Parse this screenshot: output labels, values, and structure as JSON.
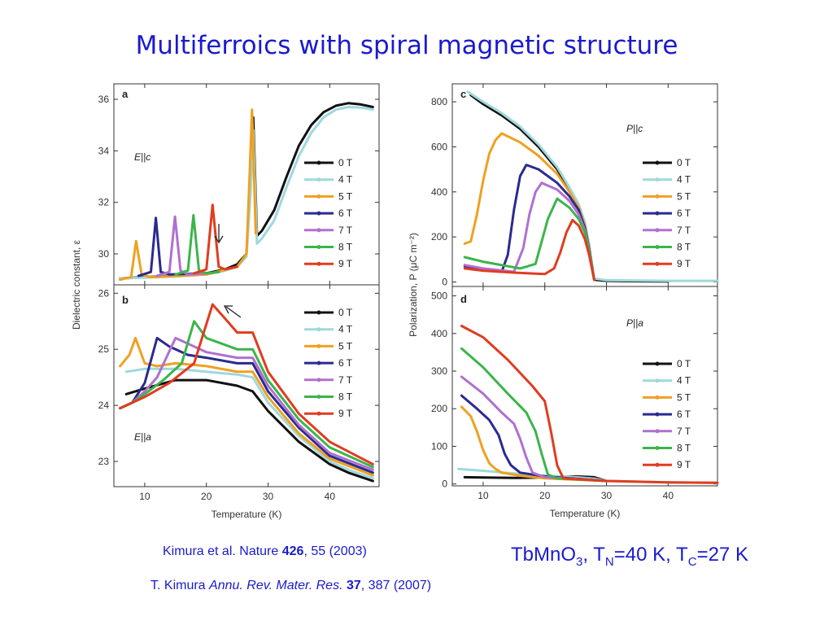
{
  "slide_title": "Multiferroics with spiral magnetic structure",
  "references": {
    "ref1_pre": "Kimura et al. Nature ",
    "ref1_vol": "426",
    "ref1_post": ", 55 (2003)",
    "ref2_pre": "T. Kimura ",
    "ref2_journal": "Annu. Rev. Mater. Res.",
    "ref2_vol": "37",
    "ref2_post": ", 387 (2007)"
  },
  "material": {
    "formula_main": "TbMnO",
    "formula_sub": "3",
    "tn_pre": ", T",
    "tn_sub": "N",
    "tn_val": "=40 K, T",
    "tc_sub": "C",
    "tc_val": "=27 K"
  },
  "colors": {
    "0 T": "#111111",
    "4 T": "#9fd8dc",
    "5 T": "#f0a020",
    "6 T": "#2a2a90",
    "7 T": "#b070d0",
    "8 T": "#3cb44b",
    "9 T": "#e03c20"
  },
  "chart_data": [
    {
      "type": "line",
      "panel_label": "a",
      "annotation": "E||c",
      "xlabel": "",
      "ylabel": "Dielectric constant, ε",
      "xlim": [
        5,
        48
      ],
      "ylim": [
        28.8,
        36.6
      ],
      "yticks": [
        "36",
        "34",
        "32",
        "30"
      ],
      "yticks_values": [
        36,
        34,
        32,
        30
      ],
      "xticks": [],
      "legend": "right",
      "series": [
        {
          "name": "0 T",
          "x": [
            6,
            10,
            15,
            20,
            23,
            25,
            26.5,
            27.2,
            27.6,
            28.2,
            29,
            31,
            33,
            35,
            37,
            39,
            41,
            43,
            45,
            47
          ],
          "y": [
            29.05,
            29.1,
            29.15,
            29.25,
            29.4,
            29.6,
            30.0,
            33.0,
            35.3,
            30.7,
            30.9,
            31.7,
            33.0,
            34.2,
            35.0,
            35.5,
            35.75,
            35.85,
            35.8,
            35.7
          ]
        },
        {
          "name": "4 T",
          "x": [
            6,
            10,
            15,
            20,
            23,
            25,
            26.5,
            27.2,
            27.6,
            28.2,
            29,
            31,
            33,
            35,
            37,
            39,
            41,
            43,
            45,
            47
          ],
          "y": [
            29.05,
            29.08,
            29.12,
            29.2,
            29.35,
            29.5,
            29.9,
            32.5,
            34.8,
            30.4,
            30.6,
            31.3,
            32.6,
            33.8,
            34.7,
            35.3,
            35.6,
            35.7,
            35.68,
            35.6
          ]
        },
        {
          "name": "5 T",
          "x": [
            6,
            7.8,
            8.6,
            9.5,
            11,
            20,
            25,
            26.5,
            27.0,
            27.4,
            28
          ],
          "y": [
            29.0,
            29.1,
            30.5,
            29.2,
            29.1,
            29.2,
            29.5,
            30.0,
            33.0,
            35.6,
            30.8
          ]
        },
        {
          "name": "6 T",
          "x": [
            9,
            11,
            11.8,
            12.6,
            14,
            20
          ],
          "y": [
            29.15,
            29.3,
            31.4,
            29.3,
            29.2,
            29.25
          ]
        },
        {
          "name": "7 T",
          "x": [
            12,
            14,
            14.9,
            15.8,
            17,
            20
          ],
          "y": [
            29.15,
            29.3,
            31.45,
            29.35,
            29.2,
            29.25
          ]
        },
        {
          "name": "8 T",
          "x": [
            15,
            17,
            17.9,
            18.8,
            20,
            22
          ],
          "y": [
            29.2,
            29.35,
            31.5,
            29.35,
            29.25,
            29.3
          ]
        },
        {
          "name": "9 T",
          "x": [
            18,
            20,
            21.0,
            22.0,
            23,
            25
          ],
          "y": [
            29.25,
            29.4,
            31.9,
            29.5,
            29.4,
            29.5
          ]
        }
      ]
    },
    {
      "type": "line",
      "panel_label": "b",
      "annotation": "E||a",
      "xlabel": "Temperature (K)",
      "ylabel": "",
      "xlim": [
        5,
        48
      ],
      "ylim": [
        22.55,
        26.15
      ],
      "yticks": [
        "26",
        "25",
        "24",
        "23"
      ],
      "yticks_values": [
        26,
        25,
        24,
        23
      ],
      "xticks": [
        "10",
        "20",
        "30",
        "40"
      ],
      "xticks_values": [
        10,
        20,
        30,
        40
      ],
      "legend": "right",
      "series": [
        {
          "name": "0 T",
          "x": [
            7,
            10,
            15,
            20,
            25,
            27.5,
            30,
            35,
            40,
            43,
            47
          ],
          "y": [
            24.2,
            24.3,
            24.45,
            24.45,
            24.35,
            24.25,
            23.9,
            23.35,
            22.95,
            22.8,
            22.65
          ]
        },
        {
          "name": "4 T",
          "x": [
            7,
            10,
            15,
            20,
            25,
            27.5,
            30,
            35,
            40,
            43,
            47
          ],
          "y": [
            24.6,
            24.65,
            24.65,
            24.6,
            24.55,
            24.5,
            24.05,
            23.45,
            23.0,
            22.85,
            22.7
          ]
        },
        {
          "name": "5 T",
          "x": [
            6,
            7.5,
            8.5,
            10,
            12,
            15,
            20,
            25,
            27.5,
            30,
            35,
            40,
            47
          ],
          "y": [
            24.7,
            24.9,
            25.2,
            24.75,
            24.7,
            24.75,
            24.7,
            24.6,
            24.6,
            24.15,
            23.5,
            23.05,
            22.75
          ]
        },
        {
          "name": "6 T",
          "x": [
            6,
            8,
            10,
            12,
            14,
            17,
            20,
            25,
            27.5,
            30,
            35,
            40,
            47
          ],
          "y": [
            23.95,
            24.05,
            24.4,
            25.2,
            25.05,
            24.9,
            24.85,
            24.75,
            24.75,
            24.25,
            23.6,
            23.1,
            22.8
          ]
        },
        {
          "name": "7 T",
          "x": [
            6,
            8,
            10,
            12,
            15,
            17,
            20,
            25,
            27.5,
            30,
            35,
            40,
            47
          ],
          "y": [
            23.95,
            24.05,
            24.25,
            24.5,
            25.2,
            25.1,
            24.95,
            24.85,
            24.85,
            24.35,
            23.65,
            23.15,
            22.85
          ]
        },
        {
          "name": "8 T",
          "x": [
            6,
            8,
            10,
            13,
            16,
            18,
            20,
            25,
            27.5,
            30,
            35,
            40,
            47
          ],
          "y": [
            23.95,
            24.05,
            24.2,
            24.45,
            24.75,
            25.5,
            25.2,
            25.0,
            25.0,
            24.45,
            23.75,
            23.25,
            22.9
          ]
        },
        {
          "name": "9 T",
          "x": [
            6,
            8,
            10,
            14,
            18,
            21,
            23,
            25,
            27.5,
            30,
            35,
            40,
            47
          ],
          "y": [
            23.95,
            24.05,
            24.15,
            24.4,
            24.75,
            25.8,
            25.55,
            25.3,
            25.3,
            24.6,
            23.85,
            23.35,
            22.95
          ]
        }
      ]
    },
    {
      "type": "line",
      "panel_label": "c",
      "annotation": "P||c",
      "xlabel": "",
      "ylabel": "Polarization, P (μC m⁻²)",
      "xlim": [
        5,
        48
      ],
      "ylim": [
        -20,
        880
      ],
      "yticks": [
        "800",
        "600",
        "400",
        "200",
        "0"
      ],
      "yticks_values": [
        800,
        600,
        400,
        200,
        0
      ],
      "xticks": [],
      "legend": "right",
      "series": [
        {
          "name": "0 T",
          "x": [
            8,
            10,
            13,
            16,
            19,
            22,
            24,
            25.5,
            26.5,
            27.2,
            28,
            30,
            35,
            40
          ],
          "y": [
            830,
            790,
            740,
            680,
            600,
            500,
            410,
            340,
            260,
            160,
            10,
            5,
            3,
            2
          ]
        },
        {
          "name": "4 T",
          "x": [
            7.5,
            10,
            13,
            16,
            19,
            22,
            24,
            25.5,
            26.5,
            27.2,
            28,
            30,
            40,
            48
          ],
          "y": [
            845,
            800,
            750,
            690,
            610,
            510,
            420,
            345,
            265,
            160,
            15,
            8,
            5,
            5
          ]
        },
        {
          "name": "5 T",
          "x": [
            7,
            8,
            9,
            10,
            11,
            12,
            13,
            16,
            19,
            22,
            24,
            25.5,
            26.5,
            27.2,
            28
          ],
          "y": [
            170,
            180,
            300,
            450,
            570,
            630,
            660,
            620,
            560,
            480,
            400,
            330,
            250,
            150,
            10
          ]
        },
        {
          "name": "6 T",
          "x": [
            7,
            10,
            13,
            14,
            15,
            16,
            17,
            19,
            22,
            24,
            25.5,
            26.5,
            27.2,
            28
          ],
          "y": [
            70,
            55,
            45,
            120,
            320,
            470,
            520,
            500,
            440,
            380,
            320,
            240,
            145,
            10
          ]
        },
        {
          "name": "7 T",
          "x": [
            7,
            10,
            15,
            16.5,
            17.5,
            18.5,
            19.5,
            22,
            24,
            25.5,
            26.5,
            27.2,
            28
          ],
          "y": [
            75,
            60,
            45,
            150,
            300,
            400,
            440,
            410,
            360,
            300,
            230,
            140,
            10
          ]
        },
        {
          "name": "8 T",
          "x": [
            7,
            10,
            16,
            18.5,
            19.5,
            20.5,
            21.5,
            22,
            24,
            25.5,
            26.5,
            27.2,
            28
          ],
          "y": [
            110,
            90,
            60,
            80,
            180,
            280,
            340,
            370,
            330,
            280,
            220,
            135,
            10
          ]
        },
        {
          "name": "9 T",
          "x": [
            7,
            10,
            16,
            20,
            21.5,
            22.5,
            23.5,
            24.5,
            25.5,
            26.5,
            27.2,
            28
          ],
          "y": [
            60,
            50,
            40,
            35,
            60,
            130,
            220,
            275,
            250,
            190,
            120,
            10
          ]
        }
      ]
    },
    {
      "type": "line",
      "panel_label": "d",
      "annotation": "P||a",
      "xlabel": "Temperature (K)",
      "ylabel": "",
      "xlim": [
        5,
        48
      ],
      "ylim": [
        -5,
        525
      ],
      "yticks": [
        "500",
        "400",
        "300",
        "200",
        "100",
        "0"
      ],
      "yticks_values": [
        500,
        400,
        300,
        200,
        100,
        0
      ],
      "xticks": [
        "10",
        "20",
        "30",
        "40"
      ],
      "xticks_values": [
        10,
        20,
        30,
        40
      ],
      "legend": "right",
      "series": [
        {
          "name": "0 T",
          "x": [
            7,
            10,
            15,
            20,
            25,
            28,
            30
          ],
          "y": [
            18,
            17,
            16,
            17,
            20,
            18,
            8
          ]
        },
        {
          "name": "4 T",
          "x": [
            6,
            10,
            15,
            20,
            25,
            28,
            30,
            40,
            48
          ],
          "y": [
            40,
            35,
            28,
            22,
            18,
            14,
            8,
            4,
            3
          ]
        },
        {
          "name": "5 T",
          "x": [
            6.5,
            8,
            9,
            10,
            11,
            12,
            13,
            16,
            20,
            30
          ],
          "y": [
            205,
            180,
            140,
            90,
            55,
            40,
            30,
            22,
            15,
            8
          ]
        },
        {
          "name": "6 T",
          "x": [
            6.5,
            9,
            11,
            12.5,
            13.5,
            14.5,
            16,
            20,
            30
          ],
          "y": [
            235,
            200,
            170,
            130,
            80,
            50,
            30,
            20,
            8
          ]
        },
        {
          "name": "7 T",
          "x": [
            6.5,
            10,
            13,
            15,
            16,
            17,
            18,
            20,
            30
          ],
          "y": [
            285,
            240,
            190,
            160,
            120,
            70,
            30,
            18,
            8
          ]
        },
        {
          "name": "8 T",
          "x": [
            6.5,
            10,
            14,
            17,
            18.5,
            19.5,
            20.5,
            22,
            30
          ],
          "y": [
            360,
            310,
            240,
            190,
            140,
            80,
            25,
            15,
            8
          ]
        },
        {
          "name": "9 T",
          "x": [
            6.5,
            10,
            14,
            18,
            20,
            21,
            22,
            23,
            30,
            40,
            48
          ],
          "y": [
            420,
            390,
            330,
            260,
            220,
            140,
            50,
            15,
            8,
            4,
            3
          ]
        }
      ]
    }
  ]
}
